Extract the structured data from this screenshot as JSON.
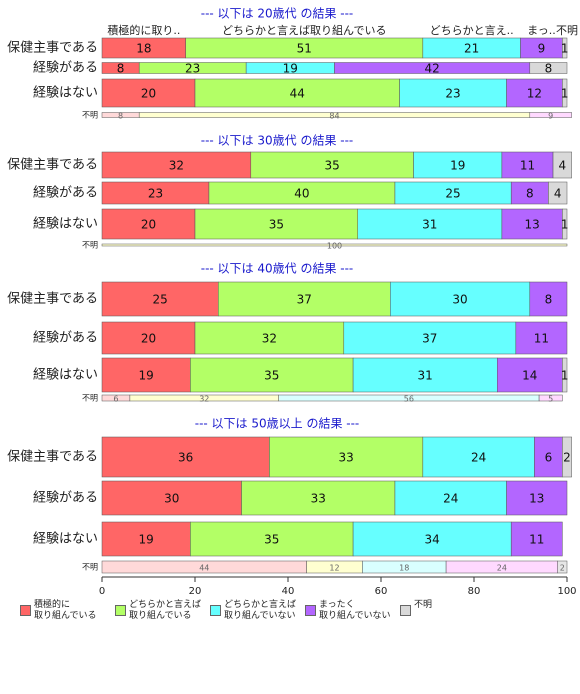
{
  "chart_data": {
    "type": "bar",
    "orientation": "horizontal",
    "stacked": true,
    "xlim": [
      0,
      100
    ],
    "xticks": [
      0,
      20,
      40,
      60,
      80,
      100
    ],
    "series": [
      {
        "name": "積極的に\n取り組んでいる",
        "color": "#ff6666",
        "light_color": "#ffd9d9"
      },
      {
        "name": "どちらかと言えば\n取り組んでいる",
        "color": "#b3ff66",
        "light_color": "#ffffd0"
      },
      {
        "name": "どちらかと言えば\n取り組んでいない",
        "color": "#66ffff",
        "light_color": "#d9ffff"
      },
      {
        "name": "まったく\n取り組んでいない",
        "color": "#b366ff",
        "light_color": "#ffd9ff"
      },
      {
        "name": "不明",
        "color": "#d9d9d9",
        "light_color": "#e6e6e6"
      }
    ],
    "panels": [
      {
        "title": "--- 以下は 20歳代 の結果 ---",
        "column_labels": [
          "積極的に取り..",
          "どちらかと言えば取り組んでいる",
          "どちらかと言え..",
          "まっ..",
          "不明"
        ],
        "rows": [
          {
            "label": "保健主事である",
            "values": [
              18,
              51,
              21,
              9,
              1
            ]
          },
          {
            "label": "経験がある",
            "values": [
              8,
              23,
              19,
              42,
              8
            ]
          },
          {
            "label": "経験はない",
            "values": [
              20,
              44,
              23,
              12,
              1
            ]
          },
          {
            "label": "不明",
            "values": [
              8,
              84,
              0,
              9,
              0
            ]
          }
        ]
      },
      {
        "title": "--- 以下は 30歳代 の結果 ---",
        "rows": [
          {
            "label": "保健主事である",
            "values": [
              32,
              35,
              19,
              11,
              4
            ]
          },
          {
            "label": "経験がある",
            "values": [
              23,
              40,
              25,
              8,
              4
            ]
          },
          {
            "label": "経験はない",
            "values": [
              20,
              35,
              31,
              13,
              1
            ]
          },
          {
            "label": "不明",
            "values": [
              0,
              100,
              0,
              0,
              0
            ]
          }
        ]
      },
      {
        "title": "--- 以下は 40歳代 の結果 ---",
        "rows": [
          {
            "label": "保健主事である",
            "values": [
              25,
              37,
              30,
              8,
              0
            ]
          },
          {
            "label": "経験がある",
            "values": [
              20,
              32,
              37,
              11,
              0
            ]
          },
          {
            "label": "経験はない",
            "values": [
              19,
              35,
              31,
              14,
              1
            ]
          },
          {
            "label": "不明",
            "values": [
              6,
              32,
              56,
              5,
              0
            ]
          }
        ]
      },
      {
        "title": "--- 以下は 50歳以上 の結果 ---",
        "rows": [
          {
            "label": "保健主事である",
            "values": [
              36,
              33,
              24,
              6,
              2
            ]
          },
          {
            "label": "経験がある",
            "values": [
              30,
              33,
              24,
              13,
              0
            ]
          },
          {
            "label": "経験はない",
            "values": [
              19,
              35,
              34,
              11,
              0
            ]
          },
          {
            "label": "不明",
            "values": [
              44,
              12,
              18,
              24,
              2
            ]
          }
        ]
      }
    ]
  }
}
